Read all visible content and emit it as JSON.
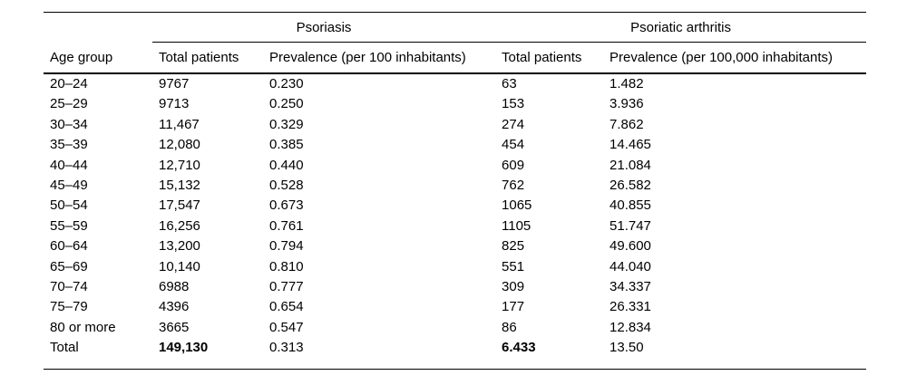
{
  "page": {
    "background": "#ffffff",
    "text_color": "#000000"
  },
  "table": {
    "group_headers": [
      {
        "label": "Psoriasis",
        "span": 2
      },
      {
        "label": "Psoriatic arthritis",
        "span": 2
      }
    ],
    "column_headers": [
      "Age group",
      "Total patients",
      "Prevalence (per 100 inhabitants)",
      "Total patients",
      "Prevalence (per 100,000 inhabitants)"
    ],
    "rows": [
      {
        "cells": [
          "20–24",
          "9767",
          "0.230",
          "63",
          "1.482"
        ],
        "bold_cells": []
      },
      {
        "cells": [
          "25–29",
          "9713",
          "0.250",
          "153",
          "3.936"
        ],
        "bold_cells": []
      },
      {
        "cells": [
          "30–34",
          "11,467",
          "0.329",
          "274",
          "7.862"
        ],
        "bold_cells": []
      },
      {
        "cells": [
          "35–39",
          "12,080",
          "0.385",
          "454",
          "14.465"
        ],
        "bold_cells": []
      },
      {
        "cells": [
          "40–44",
          "12,710",
          "0.440",
          "609",
          "21.084"
        ],
        "bold_cells": []
      },
      {
        "cells": [
          "45–49",
          "15,132",
          "0.528",
          "762",
          "26.582"
        ],
        "bold_cells": []
      },
      {
        "cells": [
          "50–54",
          "17,547",
          "0.673",
          "1065",
          "40.855"
        ],
        "bold_cells": []
      },
      {
        "cells": [
          "55–59",
          "16,256",
          "0.761",
          "1105",
          "51.747"
        ],
        "bold_cells": []
      },
      {
        "cells": [
          "60–64",
          "13,200",
          "0.794",
          "825",
          "49.600"
        ],
        "bold_cells": []
      },
      {
        "cells": [
          "65–69",
          "10,140",
          "0.810",
          "551",
          "44.040"
        ],
        "bold_cells": []
      },
      {
        "cells": [
          "70–74",
          "6988",
          "0.777",
          "309",
          "34.337"
        ],
        "bold_cells": []
      },
      {
        "cells": [
          "75–79",
          "4396",
          "0.654",
          "177",
          "26.331"
        ],
        "bold_cells": []
      },
      {
        "cells": [
          "80 or more",
          "3665",
          "0.547",
          "86",
          "12.834"
        ],
        "bold_cells": []
      },
      {
        "cells": [
          "Total",
          "149,130",
          "0.313",
          "6.433",
          "13.50"
        ],
        "bold_cells": [
          1,
          3
        ]
      }
    ]
  }
}
